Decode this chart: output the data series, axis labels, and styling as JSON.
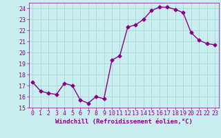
{
  "x": [
    0,
    1,
    2,
    3,
    4,
    5,
    6,
    7,
    8,
    9,
    10,
    11,
    12,
    13,
    14,
    15,
    16,
    17,
    18,
    19,
    20,
    21,
    22,
    23
  ],
  "y": [
    17.3,
    16.5,
    16.3,
    16.2,
    17.2,
    17.0,
    15.7,
    15.4,
    16.0,
    15.8,
    19.3,
    19.7,
    22.3,
    22.5,
    23.0,
    23.8,
    24.1,
    24.1,
    23.9,
    23.6,
    21.8,
    21.1,
    20.8,
    20.7
  ],
  "line_color": "#880088",
  "marker": "D",
  "markersize": 2.5,
  "linewidth": 1.0,
  "bg_color": "#c8eef0",
  "grid_color": "#aacccc",
  "xlabel": "Windchill (Refroidissement éolien,°C)",
  "xlabel_color": "#880088",
  "xlabel_fontsize": 6.5,
  "tick_color": "#880088",
  "tick_fontsize": 6.0,
  "ylim": [
    15,
    24.5
  ],
  "xlim": [
    -0.5,
    23.5
  ],
  "yticks": [
    15,
    16,
    17,
    18,
    19,
    20,
    21,
    22,
    23,
    24
  ],
  "xticks": [
    0,
    1,
    2,
    3,
    4,
    5,
    6,
    7,
    8,
    9,
    10,
    11,
    12,
    13,
    14,
    15,
    16,
    17,
    18,
    19,
    20,
    21,
    22,
    23
  ]
}
